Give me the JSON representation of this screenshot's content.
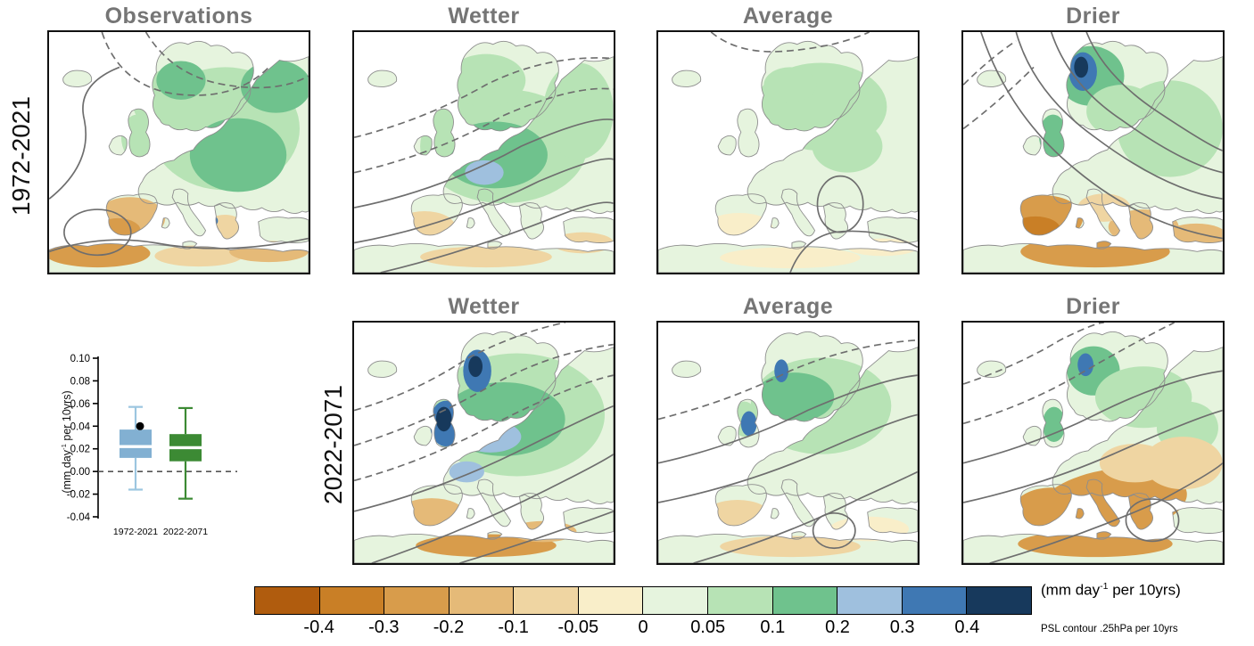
{
  "figure": {
    "rows": [
      {
        "label": "1972-2021",
        "panels": [
          {
            "title": "Observations"
          },
          {
            "title": "Wetter"
          },
          {
            "title": "Average"
          },
          {
            "title": "Drier"
          }
        ]
      },
      {
        "label": "2022-2071",
        "panels": [
          {
            "title": "Wetter"
          },
          {
            "title": "Average"
          },
          {
            "title": "Drier"
          }
        ]
      }
    ]
  },
  "boxplot": {
    "ylabel_pre": "(mm day",
    "ylabel_sup": "-1",
    "ylabel_post": " per 10yrs)",
    "yticks": [
      "0.10",
      "0.08",
      "0.06",
      "0.04",
      "0.02",
      "0.00",
      "-0.02",
      "-0.04"
    ],
    "xlabels": [
      "1972-2021",
      "2022-2071"
    ]
  },
  "colorbar": {
    "ticks": [
      "-0.4",
      "-0.3",
      "-0.2",
      "-0.1",
      "-0.05",
      "0",
      "0.05",
      "0.1",
      "0.2",
      "0.3",
      "0.4"
    ],
    "colors": [
      "#b05c0e",
      "#c97f26",
      "#d89c4b",
      "#e5ba78",
      "#efd5a2",
      "#f9eec9",
      "#e6f4de",
      "#b7e3b5",
      "#6fc28d",
      "#9fc0de",
      "#3f78b3",
      "#17395c"
    ],
    "units_pre": "(mm day",
    "units_sup": "-1",
    "units_post": " per 10yrs)",
    "contour_note": "PSL contour .25hPa per 10yrs"
  },
  "chart_data": [
    {
      "type": "boxplot",
      "ylabel": "(mm day-1 per 10yrs)",
      "ylim": [
        -0.04,
        0.1
      ],
      "yticks": [
        0.1,
        0.08,
        0.06,
        0.04,
        0.02,
        0.0,
        -0.02,
        -0.04
      ],
      "zero_line": "dashed",
      "series": [
        {
          "name": "1972-2021",
          "box_color": "#82b0d2",
          "whisker_color": "#9cc6e0",
          "median_color": "#ffffff",
          "whisker_low": -0.016,
          "q1": 0.012,
          "median": 0.022,
          "q3": 0.037,
          "whisker_high": 0.057,
          "marker_dot": 0.04
        },
        {
          "name": "2022-2071",
          "box_color": "#3c8a34",
          "whisker_color": "#3c8a34",
          "median_color": "#ffffff",
          "whisker_low": -0.024,
          "q1": 0.009,
          "median": 0.021,
          "q3": 0.033,
          "whisker_high": 0.056
        }
      ]
    },
    {
      "type": "heatmap",
      "rows": [
        "1972-2021",
        "2022-2071"
      ],
      "panels_row1": [
        "Observations",
        "Wetter",
        "Average",
        "Drier"
      ],
      "panels_row2": [
        "Wetter",
        "Average",
        "Drier"
      ],
      "scale_boundaries": [
        -0.4,
        -0.3,
        -0.2,
        -0.1,
        -0.05,
        0,
        0.05,
        0.1,
        0.2,
        0.3,
        0.4
      ],
      "scale_colors": [
        "#b05c0e",
        "#c97f26",
        "#d89c4b",
        "#e5ba78",
        "#efd5a2",
        "#f9eec9",
        "#e6f4de",
        "#b7e3b5",
        "#6fc28d",
        "#9fc0de",
        "#3f78b3",
        "#17395c"
      ],
      "units": "(mm day-1 per 10yrs)",
      "contour_units": "PSL contour .25hPa per 10yrs",
      "legend_position": "bottom"
    }
  ]
}
